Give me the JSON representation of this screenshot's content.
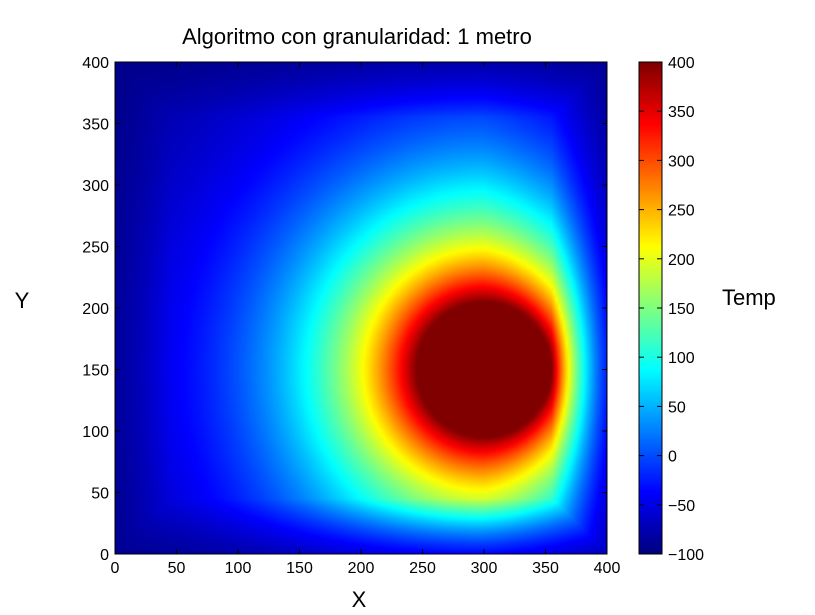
{
  "chart_data": {
    "type": "heatmap",
    "title": "Algoritmo con granularidad: 1 metro",
    "xlabel": "X",
    "ylabel": "Y",
    "xlim": [
      0,
      400
    ],
    "ylim": [
      0,
      400
    ],
    "xticks": [
      0,
      50,
      100,
      150,
      200,
      250,
      300,
      350,
      400
    ],
    "yticks": [
      0,
      50,
      100,
      150,
      200,
      250,
      300,
      350,
      400
    ],
    "x_tick_labels": [
      "0",
      "50",
      "100",
      "150",
      "200",
      "250",
      "300",
      "350",
      "400"
    ],
    "y_tick_labels": [
      "0",
      "50",
      "100",
      "150",
      "200",
      "250",
      "300",
      "350",
      "400"
    ],
    "colormap": "jet",
    "colorbar": {
      "label": "Temp",
      "range": [
        -100,
        400
      ],
      "ticks": [
        -100,
        -50,
        0,
        50,
        100,
        150,
        200,
        250,
        300,
        350,
        400
      ],
      "tick_labels": [
        "−100",
        "−50",
        "0",
        "50",
        "100",
        "150",
        "200",
        "250",
        "300",
        "350",
        "400"
      ]
    },
    "heat_source": {
      "center_x": 300,
      "center_y": 150,
      "radius": 55,
      "temperature": 400
    },
    "ambient_temperature": -100,
    "grid": false
  }
}
